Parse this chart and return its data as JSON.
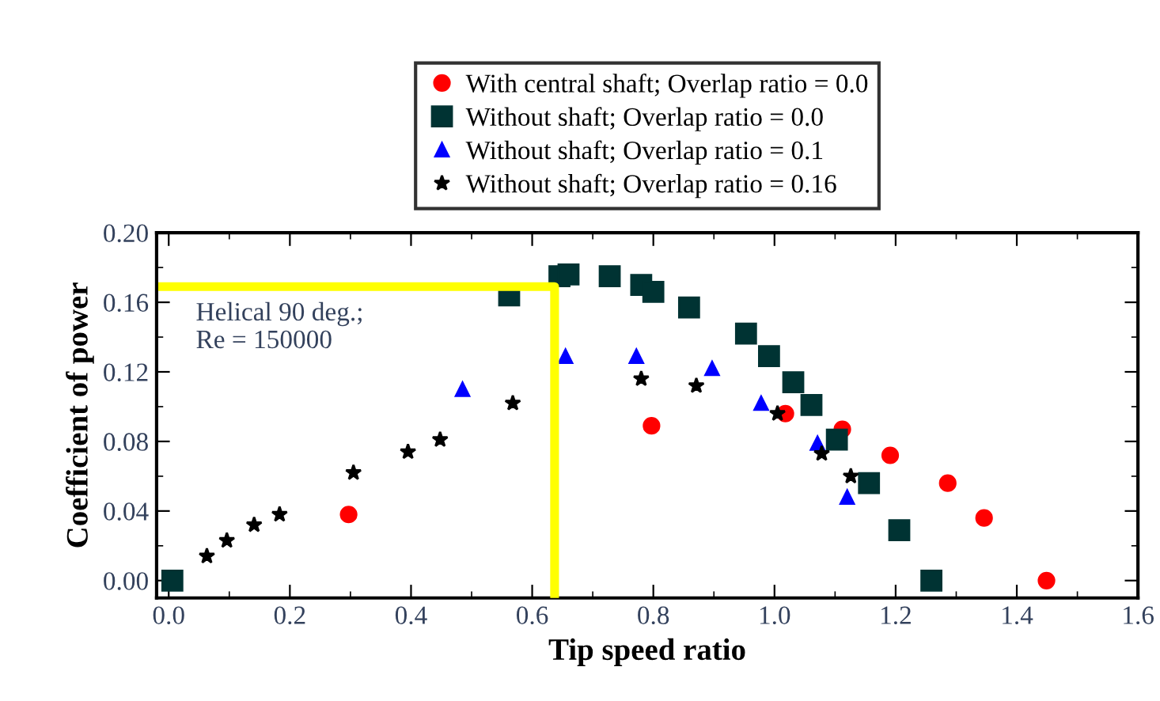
{
  "chart_data": {
    "type": "scatter",
    "xlabel": "Tip speed ratio",
    "ylabel": "Coefficient of power",
    "xlim": [
      -0.02,
      1.6
    ],
    "ylim": [
      -0.01,
      0.2
    ],
    "xticks": [
      {
        "value": 0,
        "label": "0.0"
      },
      0.2,
      0.4,
      0.6,
      0.8,
      {
        "value": 1,
        "label": "1.0"
      },
      1.2,
      1.4,
      1.6
    ],
    "yticks": [
      {
        "value": 0,
        "label": "0.00"
      },
      0.04,
      0.08,
      0.12,
      0.16,
      {
        "value": 0.2,
        "label": "0.20"
      }
    ],
    "grid": false,
    "legend": "top",
    "annotations": [
      "Helical 90 deg.;\nRe = 150000"
    ],
    "series": [
      {
        "name": "With central shaft; Overlap ratio = 0.0",
        "color": "#ff0000",
        "marker": "circle",
        "x": [
          0.297,
          0.797,
          1.018,
          1.112,
          1.191,
          1.286,
          1.346,
          1.449
        ],
        "values": [
          0.038,
          0.089,
          0.096,
          0.087,
          0.072,
          0.056,
          0.036,
          0.0
        ]
      },
      {
        "name": "Without shaft; Overlap ratio = 0.0",
        "color": "#003333",
        "marker": "square",
        "x": [
          0.006,
          0.562,
          0.645,
          0.66,
          0.728,
          0.78,
          0.8,
          0.859,
          0.953,
          0.991,
          1.031,
          1.061,
          1.103,
          1.156,
          1.206,
          1.259
        ],
        "values": [
          0.0,
          0.164,
          0.175,
          0.176,
          0.175,
          0.17,
          0.166,
          0.157,
          0.142,
          0.129,
          0.114,
          0.101,
          0.081,
          0.056,
          0.029,
          0.0
        ]
      },
      {
        "name": "Without shaft; Overlap ratio = 0.1",
        "color": "#0000ff",
        "marker": "triangle",
        "x": [
          0.485,
          0.655,
          0.772,
          0.897,
          0.978,
          1.071,
          1.12
        ],
        "values": [
          0.11,
          0.129,
          0.129,
          0.122,
          0.102,
          0.079,
          0.048
        ]
      },
      {
        "name": "Without shaft; Overlap ratio = 0.16",
        "color": "#000000",
        "marker": "star",
        "x": [
          0.063,
          0.096,
          0.141,
          0.183,
          0.305,
          0.395,
          0.448,
          0.568,
          0.78,
          0.871,
          1.005,
          1.078,
          1.126
        ],
        "values": [
          0.014,
          0.023,
          0.032,
          0.038,
          0.062,
          0.074,
          0.081,
          0.102,
          0.116,
          0.112,
          0.096,
          0.073,
          0.06
        ]
      },
      {
        "type": "line",
        "color": "#ffff00",
        "marker": "none",
        "line_style": "solid",
        "x": [
          -0.01,
          0.637,
          0.637
        ],
        "values": [
          0.169,
          0.169,
          -0.01
        ]
      }
    ]
  }
}
